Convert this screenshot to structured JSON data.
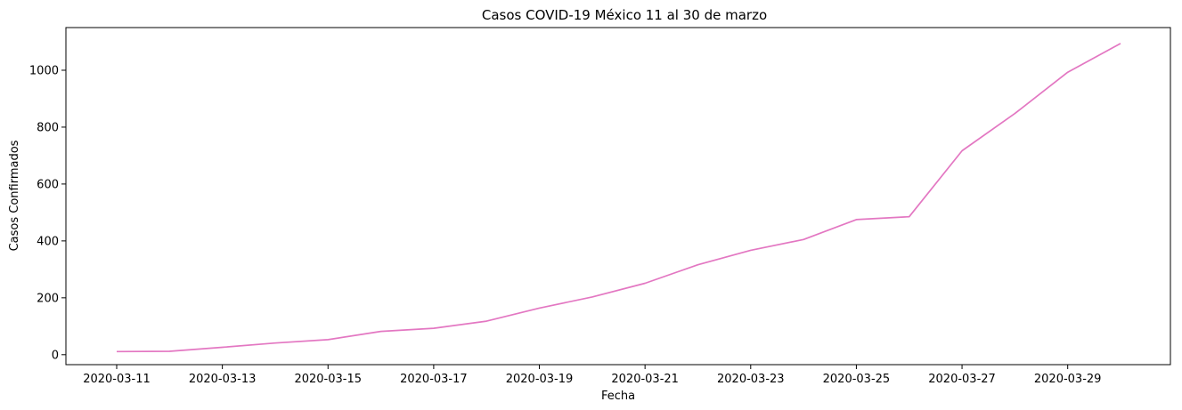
{
  "chart_data": {
    "type": "line",
    "title": "Casos COVID-19 México 11 al 30 de marzo",
    "xlabel": "Fecha",
    "ylabel": "Casos Confirmados",
    "x": [
      "2020-03-11",
      "2020-03-12",
      "2020-03-13",
      "2020-03-14",
      "2020-03-15",
      "2020-03-16",
      "2020-03-17",
      "2020-03-18",
      "2020-03-19",
      "2020-03-20",
      "2020-03-21",
      "2020-03-22",
      "2020-03-23",
      "2020-03-24",
      "2020-03-25",
      "2020-03-26",
      "2020-03-27",
      "2020-03-28",
      "2020-03-29",
      "2020-03-30"
    ],
    "series": [
      {
        "values": [
          11,
          12,
          26,
          41,
          53,
          82,
          93,
          118,
          164,
          203,
          251,
          316,
          367,
          405,
          475,
          485,
          717,
          848,
          993,
          1094
        ],
        "color": "#e377c2"
      }
    ],
    "xticks": [
      "2020-03-11",
      "2020-03-13",
      "2020-03-15",
      "2020-03-17",
      "2020-03-19",
      "2020-03-21",
      "2020-03-23",
      "2020-03-25",
      "2020-03-27",
      "2020-03-29"
    ],
    "yticks": [
      "0",
      "200",
      "400",
      "600",
      "800",
      "1000"
    ],
    "ylim": [
      -35,
      1150
    ],
    "grid": false,
    "legend": "none"
  }
}
